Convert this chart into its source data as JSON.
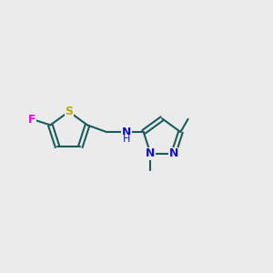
{
  "background_color": "#ebebeb",
  "bond_color": "#1a5c5c",
  "bond_width": 1.5,
  "atom_colors": {
    "F": "#ee00ee",
    "S": "#bbaa00",
    "N": "#1111cc",
    "C": "#1a5c5c"
  },
  "figsize": [
    3.0,
    3.0
  ],
  "dpi": 100,
  "xlim": [
    0,
    10
  ],
  "ylim": [
    2,
    8
  ]
}
